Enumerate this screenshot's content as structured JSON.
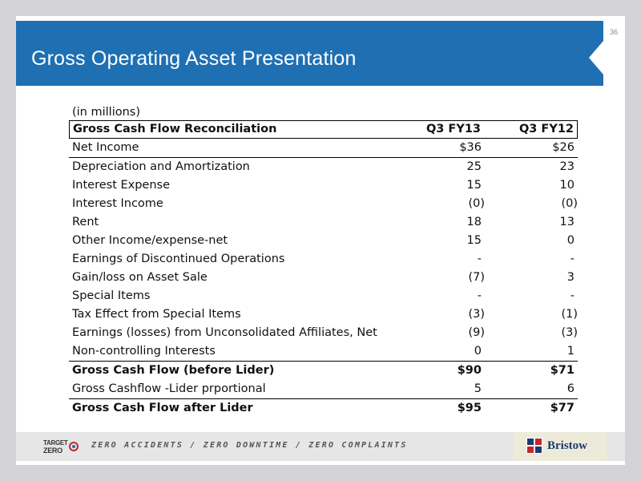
{
  "slide": {
    "title": "Gross Operating Asset Presentation",
    "page_number": "36"
  },
  "table": {
    "units": "(in millions)",
    "header": {
      "label": "Gross Cash Flow Reconciliation",
      "col1": "Q3 FY13",
      "col2": "Q3 FY12"
    },
    "rows": [
      {
        "label": "Net Income",
        "v1": "$36",
        "v2": "$26"
      },
      {
        "label": "Depreciation and Amortization",
        "v1": "25",
        "v2": "23"
      },
      {
        "label": "Interest Expense",
        "v1": "15",
        "v2": "10"
      },
      {
        "label": "Interest Income",
        "v1": "(0)",
        "v2": "(0)"
      },
      {
        "label": "Rent",
        "v1": "18",
        "v2": "13"
      },
      {
        "label": "Other Income/expense-net",
        "v1": "15",
        "v2": "0"
      },
      {
        "label": "Earnings of Discontinued Operations",
        "v1": "-",
        "v2": "-"
      },
      {
        "label": "Gain/loss on Asset Sale",
        "v1": "(7)",
        "v2": "3"
      },
      {
        "label": "Special Items",
        "v1": "-",
        "v2": "-"
      },
      {
        "label": "Tax Effect from Special Items",
        "v1": "(3)",
        "v2": "(1)"
      },
      {
        "label": "Earnings (losses) from Unconsolidated Affiliates, Net",
        "v1": "(9)",
        "v2": "(3)"
      },
      {
        "label": "Non-controlling Interests",
        "v1": "0",
        "v2": "1"
      },
      {
        "label": "Gross Cash Flow (before Lider)",
        "v1": "$90",
        "v2": "$71"
      },
      {
        "label": "Gross Cashflow -Lider prportional",
        "v1": "5",
        "v2": "6"
      },
      {
        "label": "Gross Cash Flow after Lider",
        "v1": "$95",
        "v2": "$77"
      }
    ]
  },
  "footer": {
    "target_zero_line1": "TARGET",
    "target_zero_line2": "ZERO",
    "tagline": "ZERO ACCIDENTS / ZERO DOWNTIME / ZERO COMPLAINTS",
    "brand": "Bristow"
  },
  "colors": {
    "title_bar": "#1f6fb3",
    "target_red": "#c0272d",
    "bristow_navy": "#1e3a6e"
  }
}
